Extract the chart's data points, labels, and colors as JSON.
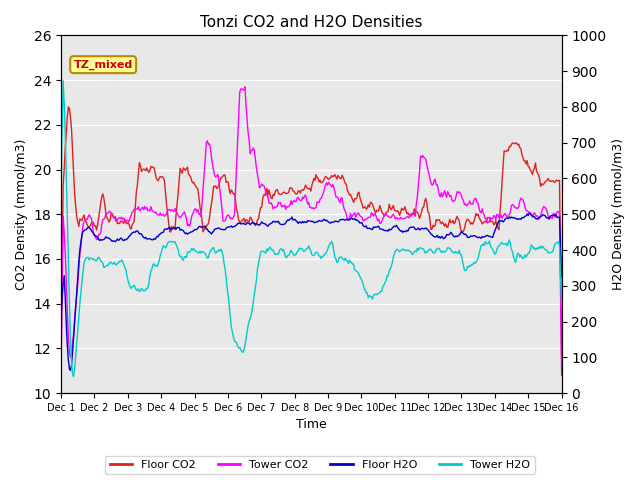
{
  "title": "Tonzi CO2 and H2O Densities",
  "xlabel": "Time",
  "ylabel_left": "CO2 Density (mmol/m3)",
  "ylabel_right": "H2O Density (mmol/m3)",
  "ylim_left": [
    10,
    26
  ],
  "ylim_right": [
    0,
    1000
  ],
  "annotation_text": "TZ_mixed",
  "annotation_color": "#cc0000",
  "annotation_bg": "#ffff99",
  "annotation_border": "#bb8800",
  "colors": {
    "floor_co2": "#dd2222",
    "tower_co2": "#ff00ff",
    "floor_h2o": "#0000cc",
    "tower_h2o": "#00cccc"
  },
  "background_color": "#e8e8e8",
  "grid_color": "#ffffff",
  "xtick_labels": [
    "Dec 1",
    "Dec 2",
    "Dec 3",
    "Dec 4",
    "Dec 5",
    "Dec 6",
    "Dec 7",
    "Dec 8",
    "Dec 9",
    "Dec 10",
    "Dec 11",
    "Dec 12",
    "Dec 13",
    "Dec 14",
    "Dec 15",
    "Dec 16"
  ],
  "yticks_left": [
    10,
    12,
    14,
    16,
    18,
    20,
    22,
    24,
    26
  ],
  "yticks_right": [
    0,
    100,
    200,
    300,
    400,
    500,
    600,
    700,
    800,
    900,
    1000
  ],
  "n_points": 480,
  "figsize": [
    6.4,
    4.8
  ],
  "dpi": 100
}
